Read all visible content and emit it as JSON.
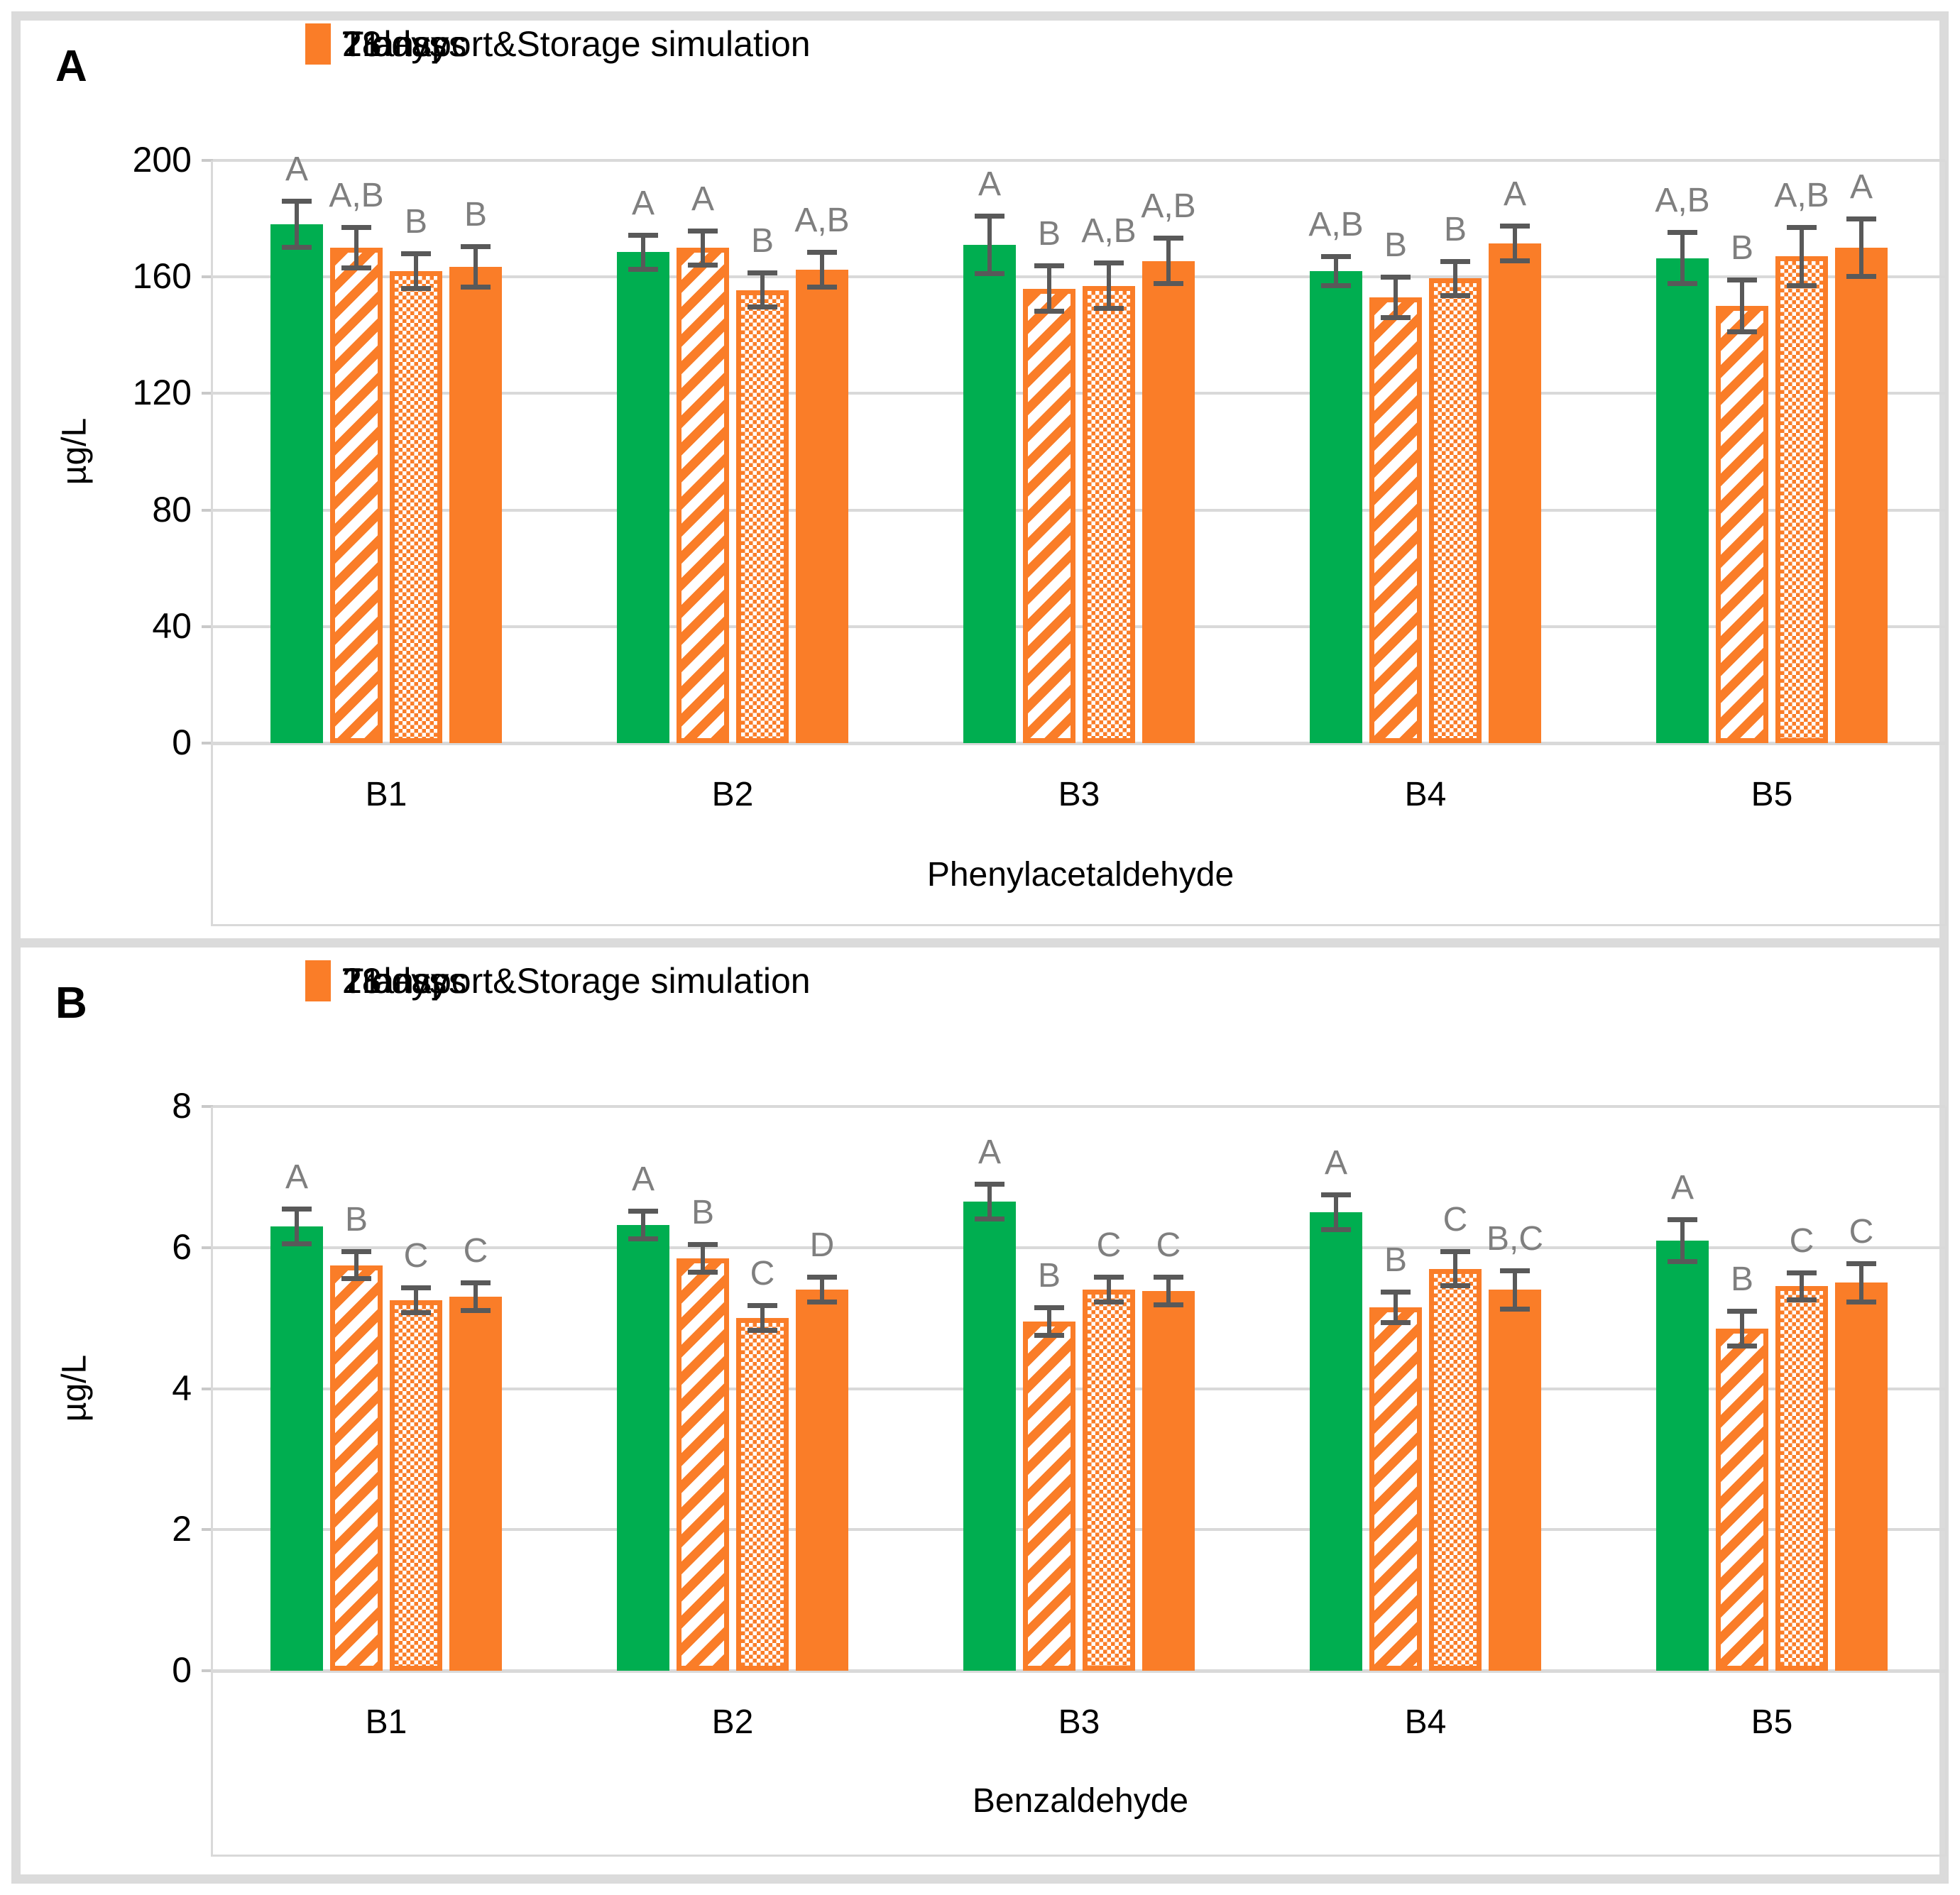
{
  "colors": {
    "series_green": "#00ae50",
    "series_orange": "#fa7d28",
    "error_bar": "#595959",
    "sig_letter": "#7f7f7f",
    "gridline": "#d9d9d9",
    "frame": "#dbdbdb"
  },
  "chart_data": [
    {
      "type": "bar",
      "panel_label": "A",
      "ylabel": "µg/L",
      "xlabel": "Phenylacetaldehyde",
      "ylim": [
        0,
        200
      ],
      "yticks": [
        0,
        40,
        80,
        120,
        160,
        200
      ],
      "categories": [
        "B1",
        "B2",
        "B3",
        "B4",
        "B5"
      ],
      "grid": true,
      "legend_position": "top",
      "series": [
        {
          "name": "Transport&Storage simulation",
          "style": "solid-green",
          "values": [
            178,
            168.5,
            171,
            162,
            166.5
          ],
          "errors": [
            8,
            6,
            10,
            5,
            9
          ],
          "sig_letters": [
            "A",
            "A",
            "A",
            "A,B",
            "A,B"
          ]
        },
        {
          "name": "7 days",
          "style": "striped-orange",
          "values": [
            170,
            170,
            156,
            153,
            150
          ],
          "errors": [
            7,
            6,
            8,
            7,
            9
          ],
          "sig_letters": [
            "A,B",
            "A",
            "B",
            "B",
            "B"
          ]
        },
        {
          "name": "21 days",
          "style": "checkered-orange",
          "values": [
            162,
            155.5,
            157,
            159.5,
            167
          ],
          "errors": [
            6,
            6,
            8,
            6,
            10
          ],
          "sig_letters": [
            "B",
            "B",
            "A,B",
            "B",
            "A,B"
          ]
        },
        {
          "name": "28 days",
          "style": "solid-orange",
          "values": [
            163.5,
            162.5,
            165.5,
            171.5,
            170
          ],
          "errors": [
            7,
            6,
            8,
            6,
            10
          ],
          "sig_letters": [
            "B",
            "A,B",
            "A,B",
            "A",
            "A"
          ]
        }
      ]
    },
    {
      "type": "bar",
      "panel_label": "B",
      "ylabel": "µg/L",
      "xlabel": "Benzaldehyde",
      "ylim": [
        0,
        8
      ],
      "yticks": [
        0,
        2,
        4,
        6,
        8
      ],
      "categories": [
        "B1",
        "B2",
        "B3",
        "B4",
        "B5"
      ],
      "grid": true,
      "legend_position": "top",
      "series": [
        {
          "name": "Transport&Storage simulation",
          "style": "solid-green",
          "values": [
            6.3,
            6.32,
            6.65,
            6.5,
            6.1
          ],
          "errors": [
            0.25,
            0.2,
            0.25,
            0.25,
            0.3
          ],
          "sig_letters": [
            "A",
            "A",
            "A",
            "A",
            "A"
          ]
        },
        {
          "name": "7 days",
          "style": "striped-orange",
          "values": [
            5.75,
            5.85,
            4.95,
            5.15,
            4.85
          ],
          "errors": [
            0.2,
            0.2,
            0.2,
            0.22,
            0.25
          ],
          "sig_letters": [
            "B",
            "B",
            "B",
            "B",
            "B"
          ]
        },
        {
          "name": "21 days",
          "style": "checkered-orange",
          "values": [
            5.25,
            5.0,
            5.4,
            5.7,
            5.45
          ],
          "errors": [
            0.18,
            0.18,
            0.18,
            0.25,
            0.2
          ],
          "sig_letters": [
            "C",
            "C",
            "C",
            "C",
            "C"
          ]
        },
        {
          "name": "28 days",
          "style": "solid-orange",
          "values": [
            5.3,
            5.4,
            5.38,
            5.4,
            5.5
          ],
          "errors": [
            0.2,
            0.18,
            0.2,
            0.28,
            0.28
          ],
          "sig_letters": [
            "C",
            "D",
            "C",
            "B,C",
            "C"
          ]
        }
      ]
    }
  ]
}
